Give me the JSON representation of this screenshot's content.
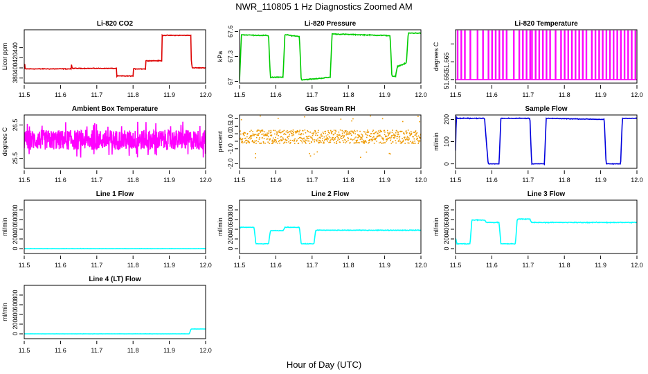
{
  "figure": {
    "title": "NWR_110805  1 Hz Diagnostics Zoomed AM",
    "xlabel": "Hour of Day (UTC)"
  },
  "chart_data": [
    {
      "type": "line",
      "title": "Li-820 CO2",
      "ylabel": "Licor ppm",
      "color": "#dd0000",
      "xlim": [
        11.5,
        12.0
      ],
      "ylim": [
        370,
        475
      ],
      "xticks": [
        "11.5",
        "11.6",
        "11.7",
        "11.8",
        "11.9",
        "12.0"
      ],
      "yticks": [
        380,
        400,
        420,
        440
      ],
      "noise": 1,
      "series": [
        {
          "x": [
            11.5,
            11.502,
            11.502,
            11.63,
            11.63,
            11.632,
            11.632,
            11.755,
            11.755,
            11.8,
            11.8,
            11.835,
            11.835,
            11.88,
            11.88,
            11.96,
            11.96,
            11.963,
            11.963,
            12.0
          ],
          "y": [
            400,
            411,
            398,
            398,
            407,
            400,
            399,
            399,
            384,
            384,
            398,
            398,
            414,
            414,
            464,
            464,
            420,
            400,
            400,
            400
          ]
        }
      ]
    },
    {
      "type": "line",
      "title": "Li-820 Pressure",
      "ylabel": "kPa",
      "color": "#00cc00",
      "xlim": [
        11.5,
        12.0
      ],
      "ylim": [
        66.98,
        67.62
      ],
      "xticks": [
        "11.5",
        "11.6",
        "11.7",
        "11.8",
        "11.9",
        "12.0"
      ],
      "yticks": [
        67.0,
        67.3,
        67.6
      ],
      "noise": 0.008,
      "series": [
        {
          "x": [
            11.5,
            11.505,
            11.58,
            11.585,
            11.62,
            11.625,
            11.665,
            11.67,
            11.705,
            11.75,
            11.755,
            11.915,
            11.92,
            11.93,
            11.935,
            11.96,
            11.965,
            12.0
          ],
          "y": [
            67.0,
            67.56,
            67.55,
            67.05,
            67.05,
            67.56,
            67.54,
            67.02,
            67.03,
            67.05,
            67.57,
            67.55,
            67.06,
            67.06,
            67.18,
            67.22,
            67.58,
            67.58
          ]
        }
      ]
    },
    {
      "type": "line",
      "title": "Li-820 Temperature",
      "ylabel": "degrees C",
      "color": "#ff00ff",
      "xlim": [
        11.5,
        12.0
      ],
      "ylim": [
        51.647,
        51.692
      ],
      "xticks": [
        "11.5",
        "11.6",
        "11.7",
        "11.8",
        "11.9",
        "12.0"
      ],
      "yticks": [
        51.65,
        51.665,
        51.68
      ],
      "ytick_labels": [
        "51.650",
        "51.665",
        ""
      ],
      "spikes": {
        "low": 51.65,
        "high": 51.691,
        "times": [
          11.505,
          11.515,
          11.525,
          11.54,
          11.56,
          11.575,
          11.59,
          11.6,
          11.61,
          11.62,
          11.63,
          11.64,
          11.66,
          11.675,
          11.685,
          11.695,
          11.705,
          11.71,
          11.72,
          11.73,
          11.74,
          11.75,
          11.76,
          11.775,
          11.79,
          11.8,
          11.81,
          11.82,
          11.83,
          11.84,
          11.85,
          11.86,
          11.875,
          11.885,
          11.895,
          11.905,
          11.915,
          11.925,
          11.935,
          11.945,
          11.955,
          11.965,
          11.975,
          11.985,
          11.995
        ]
      }
    },
    {
      "type": "line",
      "title": "Ambient Box Temperature",
      "ylabel": "degrees C",
      "color": "#ff00ff",
      "xlim": [
        11.5,
        12.0
      ],
      "ylim": [
        25.2,
        26.8
      ],
      "xticks": [
        "11.5",
        "11.6",
        "11.7",
        "11.8",
        "11.9",
        "12.0"
      ],
      "yticks": [
        25.5,
        26.5
      ],
      "band": {
        "center": 26.05,
        "halfwidth": 0.3,
        "spike": 0.55,
        "spike_rate": 0.05
      }
    },
    {
      "type": "scatter",
      "title": "Gas Stream RH",
      "ylabel": "percent",
      "color": "#ee9900",
      "xlim": [
        11.5,
        12.0
      ],
      "ylim": [
        -2.3,
        1.25
      ],
      "xticks": [
        "11.5",
        "11.6",
        "11.7",
        "11.8",
        "11.9",
        "12.0"
      ],
      "yticks": [
        -2.0,
        -1.0,
        -0.5,
        0.0,
        0.5,
        1.0
      ],
      "ytick_labels": [
        "-2.0",
        "-1.0",
        "",
        "0.0",
        "0.5",
        "1.0"
      ],
      "band": {
        "center": -0.2,
        "halfwidth": 0.45,
        "spike": 1.4,
        "spike_rate": 0.03
      }
    },
    {
      "type": "line",
      "title": "Sample Flow",
      "ylabel": "ml/min",
      "color": "#0000dd",
      "xlim": [
        11.5,
        12.0
      ],
      "ylim": [
        -20,
        220
      ],
      "xticks": [
        "11.5",
        "11.6",
        "11.7",
        "11.8",
        "11.9",
        "12.0"
      ],
      "yticks": [
        0,
        100,
        200
      ],
      "noise": 2,
      "series": [
        {
          "x": [
            11.5,
            11.502,
            11.504,
            11.58,
            11.585,
            11.59,
            11.62,
            11.625,
            11.705,
            11.71,
            11.745,
            11.75,
            11.91,
            11.915,
            11.955,
            11.96,
            12.0
          ],
          "y": [
            60,
            210,
            205,
            205,
            100,
            0,
            0,
            205,
            205,
            0,
            0,
            205,
            200,
            0,
            0,
            205,
            205
          ]
        }
      ]
    },
    {
      "type": "line",
      "title": "Line 1 Flow",
      "ylabel": "ml/min",
      "color": "#00ffff",
      "xlim": [
        11.5,
        12.0
      ],
      "ylim": [
        -100,
        1000
      ],
      "xticks": [
        "11.5",
        "11.6",
        "11.7",
        "11.8",
        "11.9",
        "12.0"
      ],
      "yticks": [
        0,
        200,
        400,
        600,
        800
      ],
      "noise": 4,
      "series": [
        {
          "x": [
            11.5,
            12.0
          ],
          "y": [
            0,
            0
          ]
        }
      ]
    },
    {
      "type": "line",
      "title": "Line 2 Flow",
      "ylabel": "ml/min",
      "color": "#00ffff",
      "xlim": [
        11.5,
        12.0
      ],
      "ylim": [
        -100,
        1000
      ],
      "xticks": [
        "11.5",
        "11.6",
        "11.7",
        "11.8",
        "11.9",
        "12.0"
      ],
      "yticks": [
        0,
        200,
        400,
        600,
        800
      ],
      "noise": 10,
      "series": [
        {
          "x": [
            11.5,
            11.54,
            11.545,
            11.58,
            11.585,
            11.62,
            11.625,
            11.665,
            11.67,
            11.705,
            11.71,
            12.0
          ],
          "y": [
            440,
            440,
            100,
            100,
            370,
            370,
            440,
            440,
            100,
            100,
            380,
            380
          ]
        }
      ]
    },
    {
      "type": "line",
      "title": "Line 3 Flow",
      "ylabel": "ml/min",
      "color": "#00ffff",
      "xlim": [
        11.5,
        12.0
      ],
      "ylim": [
        -100,
        1000
      ],
      "xticks": [
        "11.5",
        "11.6",
        "11.7",
        "11.8",
        "11.9",
        "12.0"
      ],
      "yticks": [
        0,
        200,
        400,
        600,
        800
      ],
      "noise": 12,
      "series": [
        {
          "x": [
            11.5,
            11.504,
            11.54,
            11.545,
            11.58,
            11.585,
            11.62,
            11.625,
            11.665,
            11.67,
            11.705,
            11.71,
            12.0
          ],
          "y": [
            220,
            100,
            100,
            590,
            590,
            540,
            540,
            100,
            100,
            610,
            610,
            540,
            540
          ]
        }
      ]
    },
    {
      "type": "line",
      "title": "Line 4 (LT) Flow",
      "ylabel": "ml/min",
      "color": "#00ffff",
      "xlim": [
        11.5,
        12.0
      ],
      "ylim": [
        -100,
        1000
      ],
      "xticks": [
        "11.5",
        "11.6",
        "11.7",
        "11.8",
        "11.9",
        "12.0"
      ],
      "yticks": [
        0,
        200,
        400,
        600,
        800
      ],
      "noise": 3,
      "series": [
        {
          "x": [
            11.5,
            11.955,
            11.96,
            12.0
          ],
          "y": [
            0,
            0,
            100,
            100
          ]
        }
      ]
    }
  ]
}
